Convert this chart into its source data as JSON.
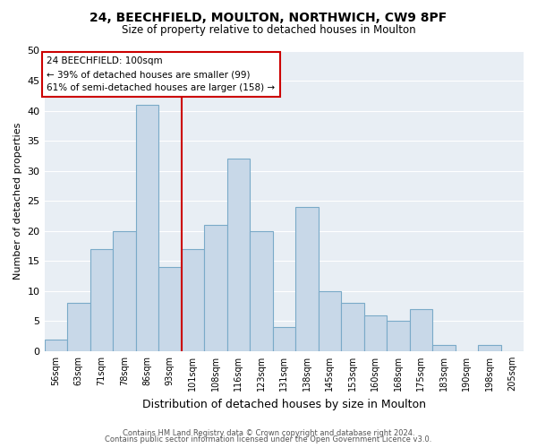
{
  "title": "24, BEECHFIELD, MOULTON, NORTHWICH, CW9 8PF",
  "subtitle": "Size of property relative to detached houses in Moulton",
  "xlabel": "Distribution of detached houses by size in Moulton",
  "ylabel": "Number of detached properties",
  "bin_labels": [
    "56sqm",
    "63sqm",
    "71sqm",
    "78sqm",
    "86sqm",
    "93sqm",
    "101sqm",
    "108sqm",
    "116sqm",
    "123sqm",
    "131sqm",
    "138sqm",
    "145sqm",
    "153sqm",
    "160sqm",
    "168sqm",
    "175sqm",
    "183sqm",
    "190sqm",
    "198sqm",
    "205sqm"
  ],
  "bar_heights": [
    2,
    8,
    17,
    20,
    41,
    14,
    17,
    21,
    32,
    20,
    4,
    24,
    10,
    8,
    6,
    5,
    7,
    1,
    0,
    1,
    0
  ],
  "bar_color": "#c8d8e8",
  "bar_edgecolor": "#7aaac8",
  "vline_index": 6,
  "vline_color": "#cc0000",
  "ylim": [
    0,
    50
  ],
  "annotation_line1": "24 BEECHFIELD: 100sqm",
  "annotation_line2": "← 39% of detached houses are smaller (99)",
  "annotation_line3": "61% of semi-detached houses are larger (158) →",
  "annotation_box_edgecolor": "#cc0000",
  "annotation_box_facecolor": "#ffffff",
  "footnote1": "Contains HM Land Registry data © Crown copyright and database right 2024.",
  "footnote2": "Contains public sector information licensed under the Open Government Licence v3.0.",
  "background_color": "#ffffff",
  "plot_background_color": "#e8eef4",
  "grid_color": "#ffffff",
  "yticks": [
    0,
    5,
    10,
    15,
    20,
    25,
    30,
    35,
    40,
    45,
    50
  ]
}
